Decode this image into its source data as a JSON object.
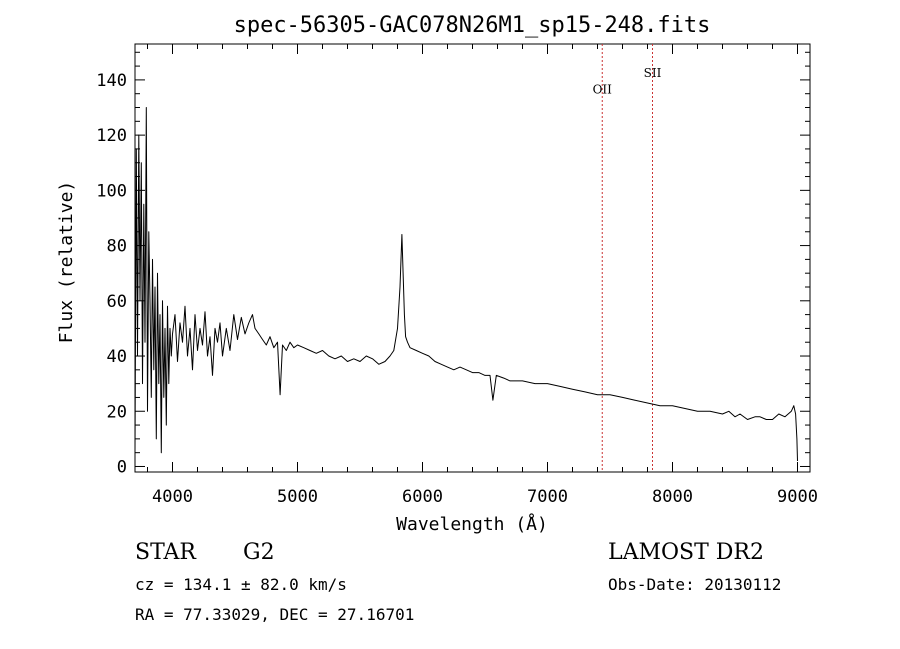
{
  "chart_data": {
    "type": "line",
    "title": "spec-56305-GAC078N26M1_sp15-248.fits",
    "xlabel": "Wavelength (Å)",
    "ylabel": "Flux (relative)",
    "xlim": [
      3700,
      9100
    ],
    "ylim": [
      -2,
      153
    ],
    "xticks": [
      4000,
      5000,
      6000,
      7000,
      8000,
      9000
    ],
    "yticks": [
      0,
      20,
      40,
      60,
      80,
      100,
      120,
      140
    ],
    "grid": false,
    "line_color": "#000000",
    "marker_color": "#cc3333",
    "series": [
      {
        "x": [
          3700,
          3710,
          3720,
          3730,
          3740,
          3750,
          3760,
          3770,
          3780,
          3790,
          3800,
          3810,
          3820,
          3830,
          3840,
          3850,
          3860,
          3870,
          3880,
          3890,
          3900,
          3910,
          3920,
          3930,
          3940,
          3950,
          3960,
          3970,
          3980,
          3990,
          4000,
          4020,
          4040,
          4060,
          4080,
          4100,
          4120,
          4140,
          4160,
          4180,
          4200,
          4220,
          4240,
          4260,
          4280,
          4300,
          4320,
          4340,
          4360,
          4380,
          4400,
          4430,
          4460,
          4490,
          4520,
          4550,
          4580,
          4610,
          4640,
          4660,
          4690,
          4720,
          4750,
          4780,
          4810,
          4840,
          4861,
          4880,
          4910,
          4940,
          4970,
          5000,
          5050,
          5100,
          5150,
          5200,
          5250,
          5300,
          5350,
          5400,
          5450,
          5500,
          5550,
          5600,
          5650,
          5700,
          5740,
          5770,
          5800,
          5820,
          5835,
          5845,
          5855,
          5865,
          5880,
          5900,
          5950,
          6000,
          6050,
          6100,
          6150,
          6200,
          6250,
          6300,
          6350,
          6400,
          6450,
          6500,
          6540,
          6563,
          6590,
          6650,
          6700,
          6800,
          6900,
          7000,
          7100,
          7200,
          7300,
          7400,
          7500,
          7600,
          7700,
          7800,
          7900,
          8000,
          8100,
          8200,
          8300,
          8400,
          8450,
          8500,
          8540,
          8600,
          8660,
          8700,
          8750,
          8800,
          8850,
          8900,
          8950,
          8970,
          8985,
          8995,
          9000
        ],
        "y": [
          5,
          115,
          40,
          120,
          60,
          110,
          30,
          95,
          45,
          130,
          20,
          85,
          60,
          25,
          75,
          35,
          65,
          10,
          70,
          30,
          55,
          5,
          60,
          25,
          50,
          15,
          58,
          30,
          50,
          40,
          48,
          55,
          38,
          52,
          45,
          58,
          40,
          50,
          35,
          55,
          42,
          50,
          44,
          56,
          40,
          47,
          33,
          50,
          45,
          52,
          40,
          50,
          42,
          55,
          46,
          54,
          48,
          52,
          55,
          50,
          48,
          46,
          44,
          47,
          43,
          45,
          26,
          44,
          42,
          45,
          43,
          44,
          43,
          42,
          41,
          42,
          40,
          39,
          40,
          38,
          39,
          38,
          40,
          39,
          37,
          38,
          40,
          42,
          50,
          65,
          84,
          70,
          55,
          47,
          45,
          43,
          42,
          41,
          40,
          38,
          37,
          36,
          35,
          36,
          35,
          34,
          34,
          33,
          33,
          24,
          33,
          32,
          31,
          31,
          30,
          30,
          29,
          28,
          27,
          26,
          26,
          25,
          24,
          23,
          22,
          22,
          21,
          20,
          20,
          19,
          20,
          18,
          19,
          17,
          18,
          18,
          17,
          17,
          19,
          18,
          20,
          22,
          19,
          10,
          2
        ]
      }
    ],
    "annotations": [
      {
        "label": "OII",
        "x": 7438,
        "label_y": 135
      },
      {
        "label": "SII",
        "x": 7840,
        "label_y": 141
      }
    ]
  },
  "info": {
    "class": "STAR",
    "subclass": "G2",
    "cz": "cz = 134.1 ± 82.0 km/s",
    "coords": "RA =  77.33029, DEC =  27.16701",
    "survey": "LAMOST DR2",
    "obs_date": "Obs-Date: 20130112"
  }
}
